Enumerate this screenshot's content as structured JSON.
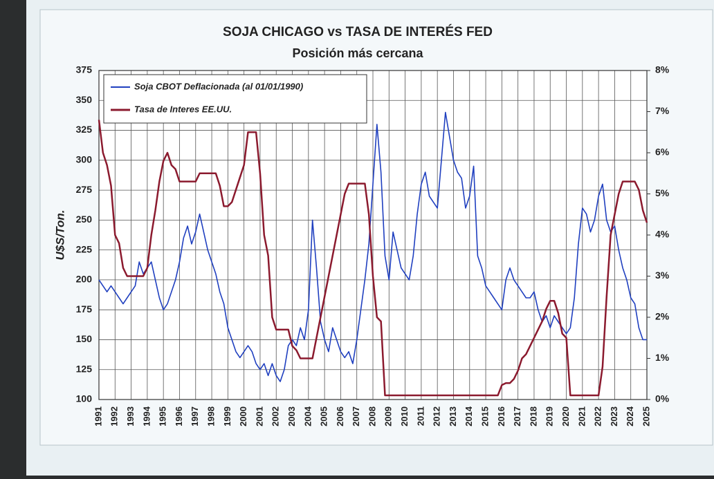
{
  "chart_data": {
    "type": "line",
    "title": "SOJA CHICAGO vs TASA DE INTERÉS FED",
    "subtitle": "Posición más cercana",
    "y_label": "U$S/Ton.",
    "x": [
      1991,
      1991.25,
      1991.5,
      1991.75,
      1992,
      1992.25,
      1992.5,
      1992.75,
      1993,
      1993.25,
      1993.5,
      1993.75,
      1994,
      1994.25,
      1994.5,
      1994.75,
      1995,
      1995.25,
      1995.5,
      1995.75,
      1996,
      1996.25,
      1996.5,
      1996.75,
      1997,
      1997.25,
      1997.5,
      1997.75,
      1998,
      1998.25,
      1998.5,
      1998.75,
      1999,
      1999.25,
      1999.5,
      1999.75,
      2000,
      2000.25,
      2000.5,
      2000.75,
      2001,
      2001.25,
      2001.5,
      2001.75,
      2002,
      2002.25,
      2002.5,
      2002.75,
      2003,
      2003.25,
      2003.5,
      2003.75,
      2004,
      2004.25,
      2004.5,
      2004.75,
      2005,
      2005.25,
      2005.5,
      2005.75,
      2006,
      2006.25,
      2006.5,
      2006.75,
      2007,
      2007.25,
      2007.5,
      2007.75,
      2008,
      2008.25,
      2008.5,
      2008.75,
      2009,
      2009.25,
      2009.5,
      2009.75,
      2010,
      2010.25,
      2010.5,
      2010.75,
      2011,
      2011.25,
      2011.5,
      2011.75,
      2012,
      2012.25,
      2012.5,
      2012.75,
      2013,
      2013.25,
      2013.5,
      2013.75,
      2014,
      2014.25,
      2014.5,
      2014.75,
      2015,
      2015.25,
      2015.5,
      2015.75,
      2016,
      2016.25,
      2016.5,
      2016.75,
      2017,
      2017.25,
      2017.5,
      2017.75,
      2018,
      2018.25,
      2018.5,
      2018.75,
      2019,
      2019.25,
      2019.5,
      2019.75,
      2020,
      2020.25,
      2020.5,
      2020.75,
      2021,
      2021.25,
      2021.5,
      2021.75,
      2022,
      2022.25,
      2022.5,
      2022.75,
      2023,
      2023.25,
      2023.5,
      2023.75,
      2024,
      2024.25,
      2024.5,
      2024.75,
      2025
    ],
    "series": [
      {
        "name": "Soja CBOT Deflacionada (al 01/01/1990)",
        "color": "#1f3fbf",
        "values": [
          200,
          195,
          190,
          195,
          190,
          185,
          180,
          185,
          190,
          195,
          215,
          205,
          210,
          215,
          200,
          185,
          175,
          180,
          190,
          200,
          215,
          235,
          245,
          230,
          240,
          255,
          240,
          225,
          215,
          205,
          190,
          180,
          160,
          150,
          140,
          135,
          140,
          145,
          140,
          130,
          125,
          130,
          120,
          130,
          120,
          115,
          125,
          145,
          150,
          145,
          160,
          150,
          175,
          250,
          210,
          165,
          150,
          140,
          160,
          150,
          140,
          135,
          140,
          130,
          150,
          175,
          200,
          230,
          280,
          330,
          290,
          220,
          200,
          240,
          225,
          210,
          205,
          200,
          220,
          255,
          280,
          290,
          270,
          265,
          260,
          300,
          340,
          320,
          300,
          290,
          285,
          260,
          270,
          295,
          220,
          210,
          195,
          190,
          185,
          180,
          175,
          200,
          210,
          200,
          195,
          190,
          185,
          185,
          190,
          175,
          165,
          170,
          160,
          170,
          165,
          160,
          155,
          160,
          185,
          230,
          260,
          255,
          240,
          250,
          270,
          280,
          250,
          240,
          245,
          225,
          210,
          200,
          185,
          180,
          160,
          150,
          150
        ]
      },
      {
        "name": "Tasa de Interes EE.UU.",
        "color": "#8b1a2e",
        "axis": "y2",
        "values": [
          6.8,
          6,
          5.7,
          5.2,
          4,
          3.8,
          3.2,
          3,
          3,
          3,
          3,
          3,
          3.2,
          4,
          4.6,
          5.3,
          5.8,
          6,
          5.7,
          5.6,
          5.3,
          5.3,
          5.3,
          5.3,
          5.3,
          5.5,
          5.5,
          5.5,
          5.5,
          5.5,
          5.2,
          4.7,
          4.7,
          4.8,
          5.1,
          5.4,
          5.7,
          6.5,
          6.5,
          6.5,
          5.5,
          4,
          3.5,
          2,
          1.7,
          1.7,
          1.7,
          1.7,
          1.3,
          1.2,
          1,
          1,
          1,
          1,
          1.5,
          2,
          2.5,
          3,
          3.5,
          4,
          4.5,
          5,
          5.25,
          5.25,
          5.25,
          5.25,
          5.25,
          4.5,
          3,
          2,
          1.9,
          0.1,
          0.1,
          0.1,
          0.1,
          0.1,
          0.1,
          0.1,
          0.1,
          0.1,
          0.1,
          0.1,
          0.1,
          0.1,
          0.1,
          0.1,
          0.1,
          0.1,
          0.1,
          0.1,
          0.1,
          0.1,
          0.1,
          0.1,
          0.1,
          0.1,
          0.1,
          0.1,
          0.1,
          0.1,
          0.35,
          0.4,
          0.4,
          0.5,
          0.7,
          1,
          1.1,
          1.3,
          1.5,
          1.7,
          1.9,
          2.2,
          2.4,
          2.4,
          2.1,
          1.6,
          1.5,
          0.1,
          0.1,
          0.1,
          0.1,
          0.1,
          0.1,
          0.1,
          0.1,
          0.8,
          2.5,
          4,
          4.5,
          5,
          5.3,
          5.3,
          5.3,
          5.3,
          5.1,
          4.6,
          4.3
        ]
      }
    ],
    "xlim": [
      1991,
      2025
    ],
    "xticks": [
      1991,
      1992,
      1993,
      1994,
      1995,
      1996,
      1997,
      1998,
      1999,
      2000,
      2001,
      2002,
      2003,
      2004,
      2005,
      2006,
      2007,
      2008,
      2009,
      2010,
      2011,
      2012,
      2013,
      2014,
      2015,
      2016,
      2017,
      2018,
      2019,
      2020,
      2021,
      2022,
      2023,
      2024,
      2025
    ],
    "ylim": [
      100,
      375
    ],
    "yticks": [
      100,
      125,
      150,
      175,
      200,
      225,
      250,
      275,
      300,
      325,
      350,
      375
    ],
    "y2lim": [
      0,
      8
    ],
    "y2ticks": [
      {
        "value": 0,
        "label": "0%"
      },
      {
        "value": 1,
        "label": "1%"
      },
      {
        "value": 2,
        "label": "2%"
      },
      {
        "value": 3,
        "label": "3%"
      },
      {
        "value": 4,
        "label": "4%"
      },
      {
        "value": 5,
        "label": "5%"
      },
      {
        "value": 6,
        "label": "6%"
      },
      {
        "value": 7,
        "label": "7%"
      },
      {
        "value": 8,
        "label": "8%"
      }
    ],
    "grid": true,
    "legend": "upper left"
  }
}
